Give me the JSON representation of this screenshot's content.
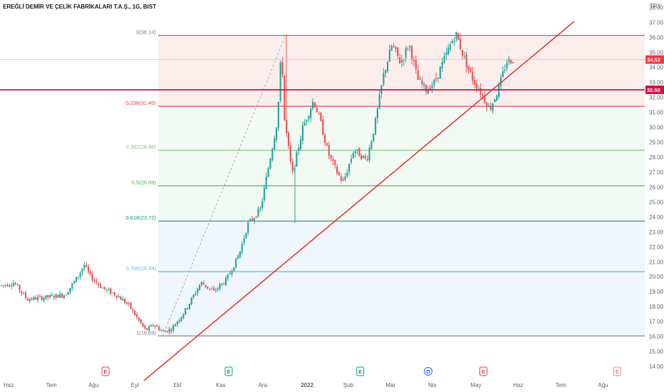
{
  "title": "EREĞLİ DEMİR VE ÇELİK FABRİKALARI T.A.Ş., 1G, BIST",
  "currency": "TRY",
  "colors": {
    "up": "#26a69a",
    "down": "#ef5350",
    "trendline": "#e53935",
    "support": "#d50f44",
    "price_badge": "#f23645",
    "fib_top_fill": "#fdecec",
    "fib_mid_fill": "#f2faf3",
    "fib_low_fill": "#eef5fb"
  },
  "chart_data": {
    "type": "candlestick",
    "title": "EREĞLİ DEMİR VE ÇELİK FABRİKALARI T.A.Ş., 1G, BIST",
    "ylabel": "TRY",
    "ylim": [
      13.5,
      38.6
    ],
    "y_ticks": [
      "38.00",
      "37.00",
      "36.00",
      "35.00",
      "34.00",
      "33.00",
      "32.00",
      "31.00",
      "30.00",
      "29.00",
      "28.00",
      "27.00",
      "26.00",
      "25.00",
      "24.00",
      "23.00",
      "22.00",
      "21.00",
      "20.00",
      "19.00",
      "18.00",
      "17.00",
      "16.00",
      "15.00",
      "14.00"
    ],
    "x_ticks": [
      {
        "label": "Haz",
        "month": 0
      },
      {
        "label": "Tem",
        "month": 1
      },
      {
        "label": "Ağu",
        "month": 2
      },
      {
        "label": "Eyl",
        "month": 3
      },
      {
        "label": "Ekl",
        "month": 4
      },
      {
        "label": "Kas",
        "month": 5
      },
      {
        "label": "Ara",
        "month": 6
      },
      {
        "label": "2022",
        "month": 7
      },
      {
        "label": "Şub",
        "month": 8
      },
      {
        "label": "Mar",
        "month": 9
      },
      {
        "label": "Nis",
        "month": 10
      },
      {
        "label": "May",
        "month": 11
      },
      {
        "label": "Haz",
        "month": 12
      },
      {
        "label": "Tem",
        "month": 13
      },
      {
        "label": "Ağu",
        "month": 14
      }
    ],
    "price_anchors": [
      [
        0.0,
        19.4
      ],
      [
        0.3,
        19.6
      ],
      [
        0.6,
        18.5
      ],
      [
        1.0,
        18.6
      ],
      [
        1.5,
        18.8
      ],
      [
        1.8,
        20.0
      ],
      [
        1.95,
        20.8
      ],
      [
        2.1,
        20.0
      ],
      [
        2.4,
        19.2
      ],
      [
        2.7,
        18.8
      ],
      [
        3.0,
        18.1
      ],
      [
        3.25,
        17.0
      ],
      [
        3.4,
        16.4
      ],
      [
        3.6,
        16.8
      ],
      [
        3.8,
        16.3
      ],
      [
        4.0,
        16.5
      ],
      [
        4.3,
        17.6
      ],
      [
        4.7,
        19.6
      ],
      [
        5.0,
        19.0
      ],
      [
        5.3,
        19.8
      ],
      [
        5.6,
        21.5
      ],
      [
        5.8,
        23.5
      ],
      [
        6.1,
        24.5
      ],
      [
        6.3,
        27.5
      ],
      [
        6.5,
        30.5
      ],
      [
        6.6,
        35.5
      ],
      [
        6.65,
        30.8
      ],
      [
        6.85,
        26.8
      ],
      [
        7.1,
        30.0
      ],
      [
        7.35,
        31.8
      ],
      [
        7.5,
        30.5
      ],
      [
        7.7,
        28.2
      ],
      [
        7.9,
        27.0
      ],
      [
        8.05,
        26.3
      ],
      [
        8.3,
        28.5
      ],
      [
        8.6,
        27.8
      ],
      [
        8.8,
        30.2
      ],
      [
        9.0,
        33.5
      ],
      [
        9.2,
        35.5
      ],
      [
        9.4,
        34.3
      ],
      [
        9.6,
        35.6
      ],
      [
        9.8,
        33.2
      ],
      [
        10.0,
        32.5
      ],
      [
        10.2,
        33.0
      ],
      [
        10.5,
        35.0
      ],
      [
        10.7,
        36.3
      ],
      [
        10.9,
        34.6
      ],
      [
        11.1,
        33.2
      ],
      [
        11.3,
        32.3
      ],
      [
        11.5,
        31.2
      ],
      [
        11.7,
        32.5
      ],
      [
        11.9,
        34.4
      ],
      [
        12.05,
        34.52
      ]
    ],
    "fibonacci": {
      "high": 36.14,
      "low": 16.04,
      "levels": [
        {
          "label": "0(36.14)",
          "value": 36.14,
          "color": "#787b86"
        },
        {
          "label": "0.236(31.40)",
          "value": 31.4,
          "color": "#f23645"
        },
        {
          "label": "0.382(28.46)",
          "value": 28.46,
          "color": "#81c784"
        },
        {
          "label": "0.5(26.08)",
          "value": 26.08,
          "color": "#4caf50"
        },
        {
          "label": "0.618(23.72)",
          "value": 23.72,
          "color": "#089981"
        },
        {
          "label": "0.786(20.34)",
          "value": 20.34,
          "color": "#64b5f6"
        },
        {
          "label": "1(16.04)",
          "value": 16.04,
          "color": "#787b86"
        }
      ]
    },
    "trendline": {
      "from": [
        3.2,
        13.4
      ],
      "to": [
        13.6,
        38.0
      ]
    },
    "horizontal_line": {
      "value": 32.5,
      "label": "32.50"
    },
    "last_price": {
      "value": 34.52,
      "label": "34.52"
    },
    "dashed_projection": {
      "from": [
        4.0,
        16.04
      ],
      "to": [
        6.6,
        36.14
      ]
    },
    "events": [
      {
        "letter": "E",
        "month": 2.35,
        "color": "#f23645"
      },
      {
        "letter": "E",
        "month": 5.25,
        "color": "#089981"
      },
      {
        "letter": "E",
        "month": 8.35,
        "color": "#089981"
      },
      {
        "letter": "D",
        "month": 9.95,
        "color": "#2962ff",
        "round": true
      },
      {
        "letter": "E",
        "month": 11.25,
        "color": "#f23645"
      },
      {
        "letter": "E",
        "month": 14.4,
        "color": "#f77c80"
      }
    ]
  }
}
